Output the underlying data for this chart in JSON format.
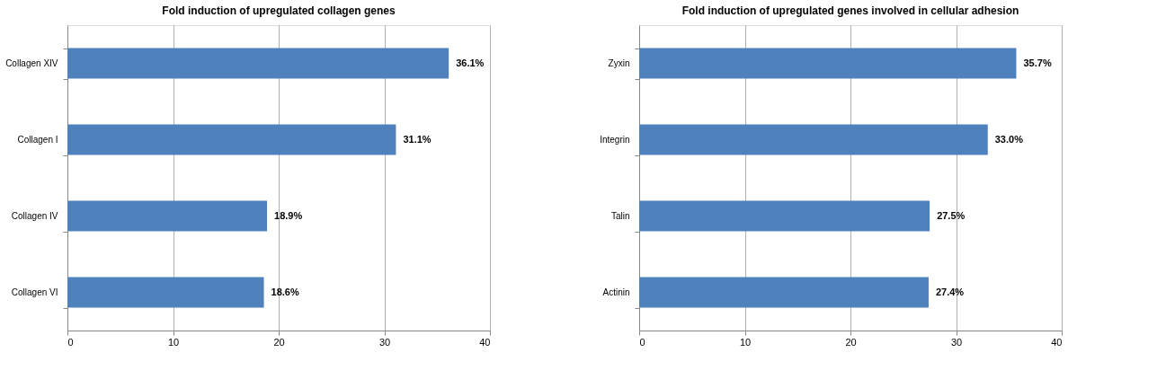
{
  "chart_data": [
    {
      "type": "bar",
      "orientation": "horizontal",
      "title": "Fold induction of upregulated collagen  genes",
      "categories": [
        "Collagen XIV",
        "Collagen I",
        "Collagen IV",
        "Collagen VI"
      ],
      "values": [
        36.1,
        31.1,
        18.9,
        18.6
      ],
      "value_labels": [
        "36.1%",
        "31.1%",
        "18.9%",
        "18.6%"
      ],
      "color": "#4f81bd",
      "xlim": [
        0,
        40
      ],
      "xticks": [
        0,
        10,
        20,
        30,
        40
      ],
      "grid": "x"
    },
    {
      "type": "bar",
      "orientation": "horizontal",
      "title": "Fold induction of upregulated  genes involved in cellular adhesion",
      "categories": [
        "Zyxin",
        "Integrin",
        "Talin",
        "Actinin"
      ],
      "values": [
        35.7,
        33.0,
        27.5,
        27.4
      ],
      "value_labels": [
        "35.7%",
        "33.0%",
        "27.5%",
        "27.4%"
      ],
      "color": "#4f81bd",
      "xlim": [
        0,
        40
      ],
      "xticks": [
        0,
        10,
        20,
        30,
        40
      ],
      "grid": "x"
    }
  ]
}
